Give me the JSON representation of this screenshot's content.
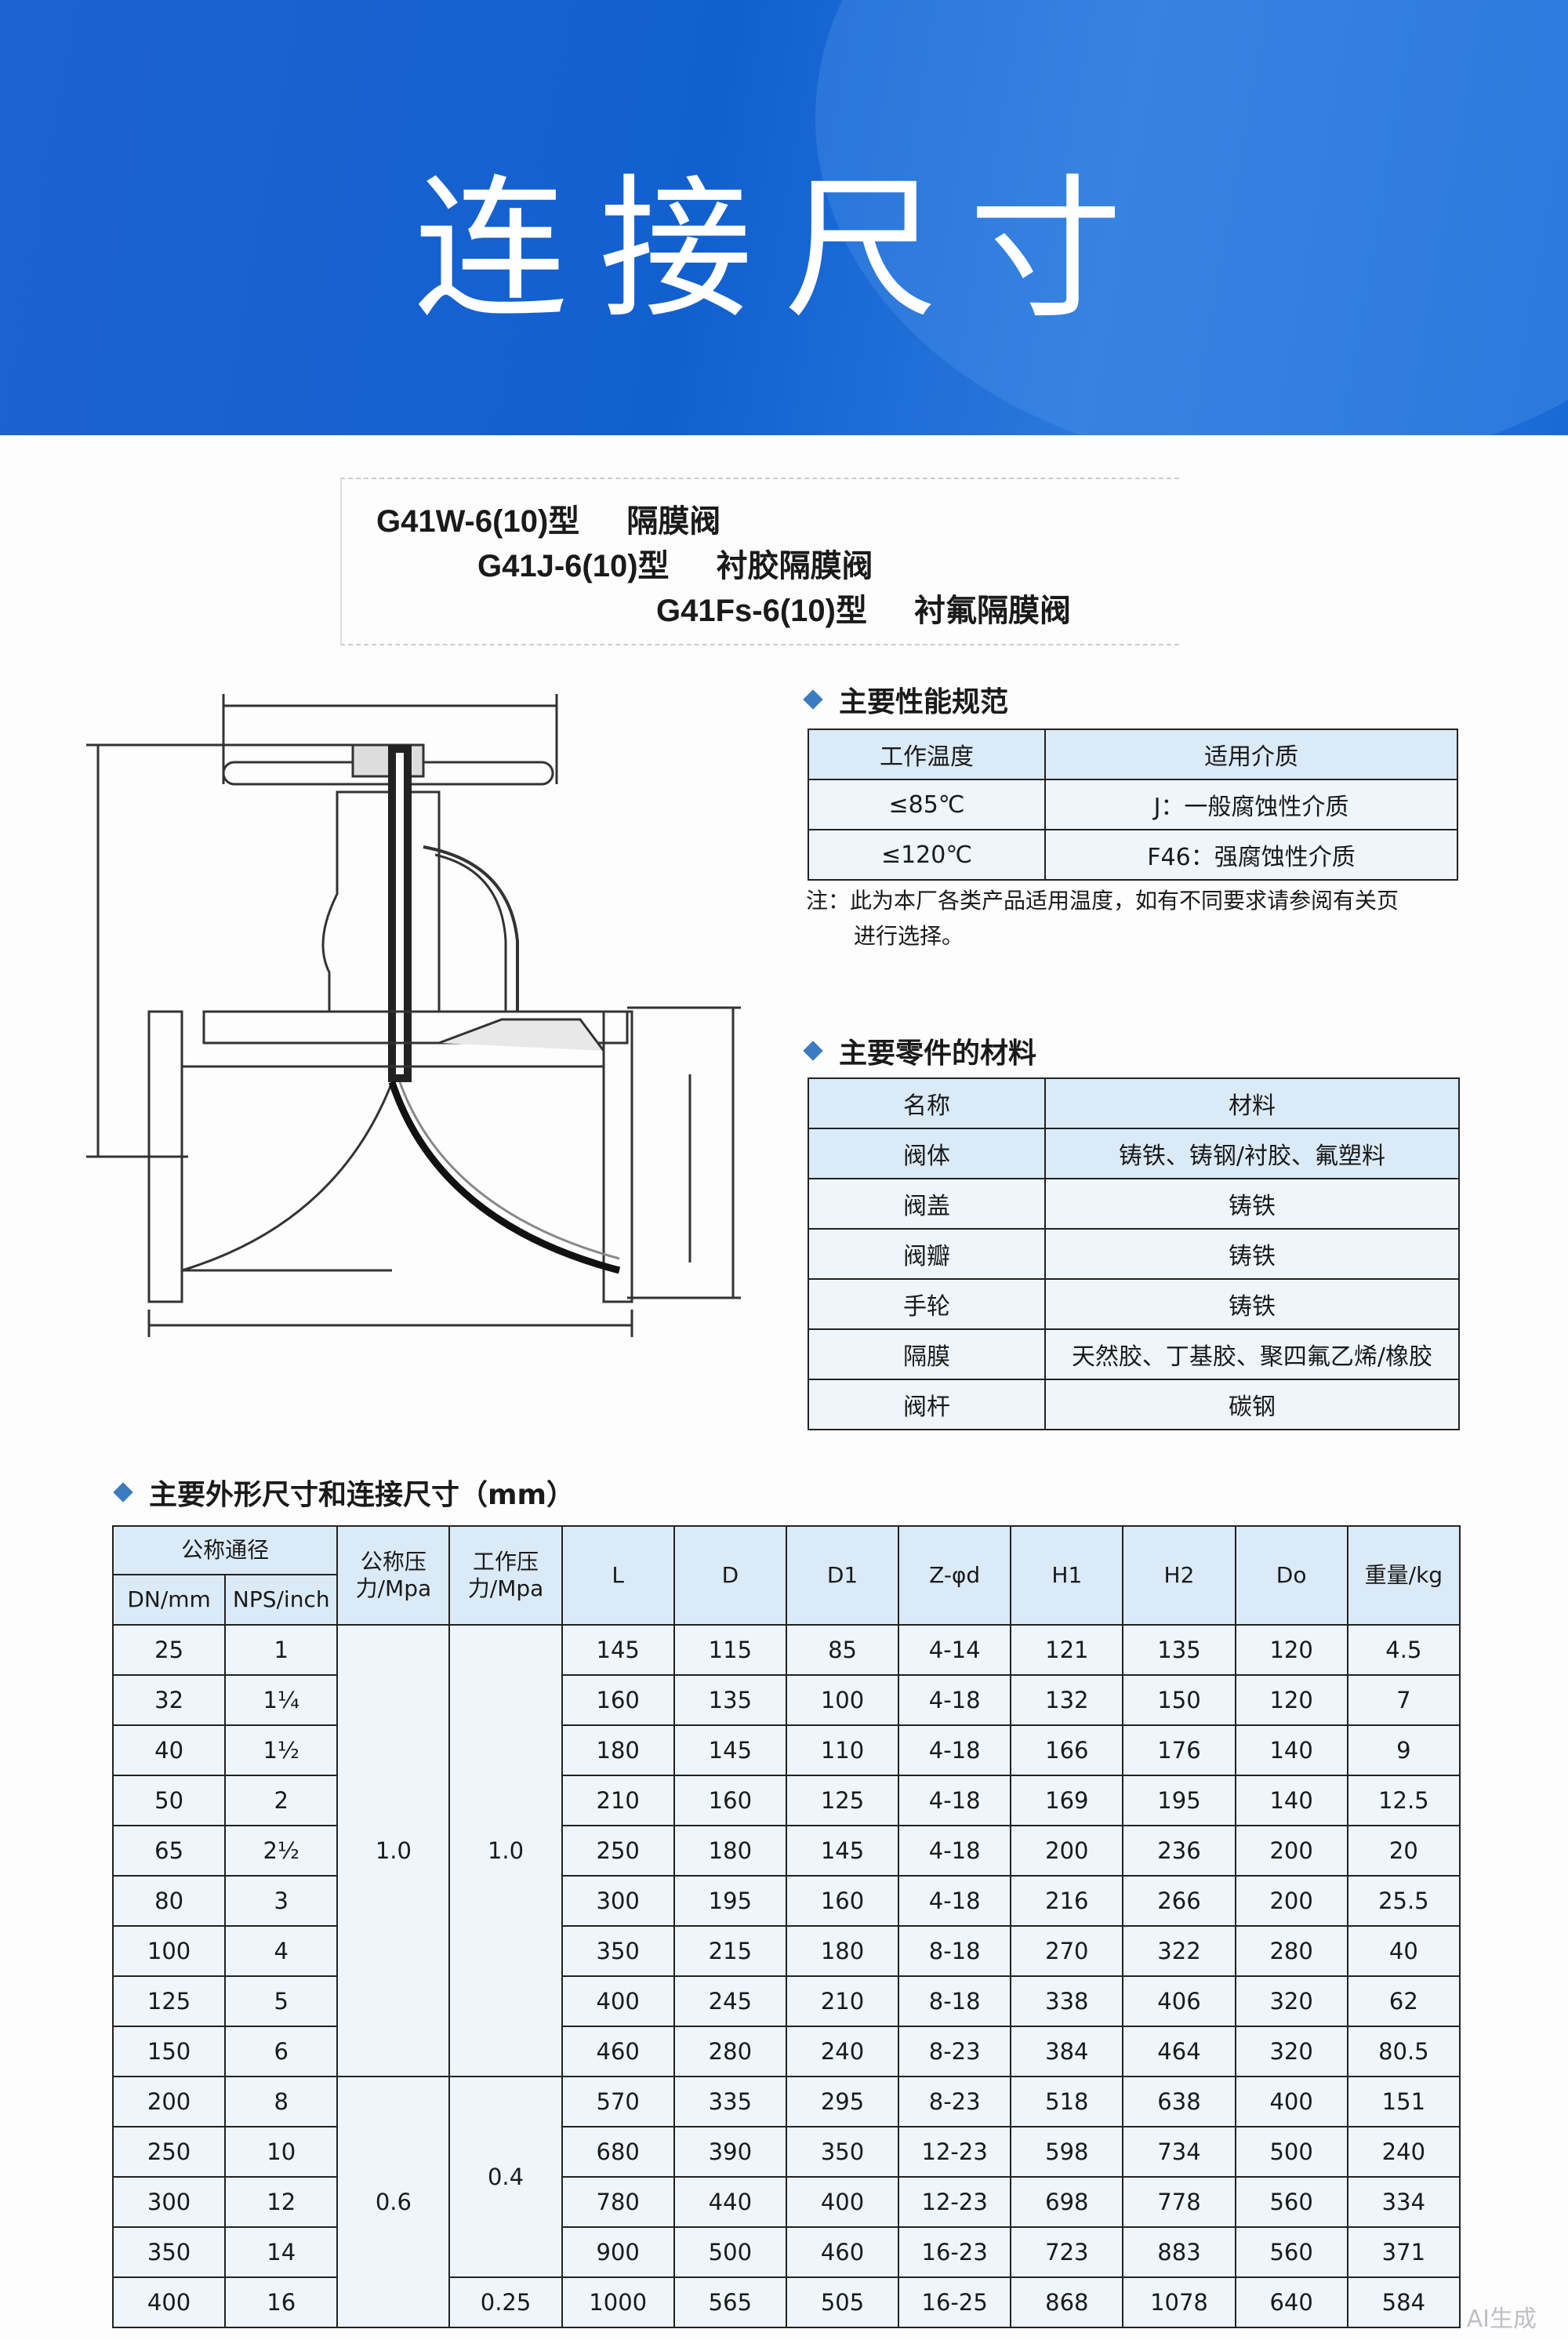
{
  "header": {
    "title": "连接尺寸",
    "background_color": "#1560d0"
  },
  "models": [
    {
      "code": "G41W-6(10)型",
      "name": "隔膜阀"
    },
    {
      "code": "G41J-6(10)型",
      "name": "衬胶隔膜阀"
    },
    {
      "code": "G41Fs-6(10)型",
      "name": "衬氟隔膜阀"
    }
  ],
  "performance": {
    "heading": "主要性能规范",
    "columns": [
      "工作温度",
      "适用介质"
    ],
    "rows": [
      [
        "≤85℃",
        "J：一般腐蚀性介质"
      ],
      [
        "≤120℃",
        "F46：强腐蚀性介质"
      ]
    ],
    "note_line1": "注：此为本厂各类产品适用温度，如有不同要求请参阅有关页",
    "note_line2": "进行选择。"
  },
  "materials": {
    "heading": "主要零件的材料",
    "columns": [
      "名称",
      "材料"
    ],
    "rows": [
      [
        "阀体",
        "铸铁、铸钢/衬胶、氟塑料"
      ],
      [
        "阀盖",
        "铸铁"
      ],
      [
        "阀瓣",
        "铸铁"
      ],
      [
        "手轮",
        "铸铁"
      ],
      [
        "隔膜",
        "天然胶、丁基胶、聚四氟乙烯/橡胶"
      ],
      [
        "阀杆",
        "碳钢"
      ]
    ]
  },
  "dimensions": {
    "heading": "主要外形尺寸和连接尺寸（mm）",
    "header": {
      "nominal_diameter": "公称通径",
      "dn": "DN/mm",
      "nps": "NPS/inch",
      "nominal_pressure": "公称压力/Mpa",
      "working_pressure": "工作压力/Mpa",
      "cols": [
        "L",
        "D",
        "D1",
        "Z-φd",
        "H1",
        "H2",
        "Do",
        "重量/kg"
      ]
    },
    "nominal_pressure_groups": [
      {
        "value": "1.0",
        "rows": 9
      },
      {
        "value": "0.6",
        "rows": 5
      }
    ],
    "working_pressure_groups": [
      {
        "value": "1.0",
        "rows": 9
      },
      {
        "value": "0.4",
        "rows": 4
      },
      {
        "value": "0.25",
        "rows": 1
      }
    ],
    "rows": [
      [
        "25",
        "1",
        "145",
        "115",
        "85",
        "4-14",
        "121",
        "135",
        "120",
        "4.5"
      ],
      [
        "32",
        "1¼",
        "160",
        "135",
        "100",
        "4-18",
        "132",
        "150",
        "120",
        "7"
      ],
      [
        "40",
        "1½",
        "180",
        "145",
        "110",
        "4-18",
        "166",
        "176",
        "140",
        "9"
      ],
      [
        "50",
        "2",
        "210",
        "160",
        "125",
        "4-18",
        "169",
        "195",
        "140",
        "12.5"
      ],
      [
        "65",
        "2½",
        "250",
        "180",
        "145",
        "4-18",
        "200",
        "236",
        "200",
        "20"
      ],
      [
        "80",
        "3",
        "300",
        "195",
        "160",
        "4-18",
        "216",
        "266",
        "200",
        "25.5"
      ],
      [
        "100",
        "4",
        "350",
        "215",
        "180",
        "8-18",
        "270",
        "322",
        "280",
        "40"
      ],
      [
        "125",
        "5",
        "400",
        "245",
        "210",
        "8-18",
        "338",
        "406",
        "320",
        "62"
      ],
      [
        "150",
        "6",
        "460",
        "280",
        "240",
        "8-23",
        "384",
        "464",
        "320",
        "80.5"
      ],
      [
        "200",
        "8",
        "570",
        "335",
        "295",
        "8-23",
        "518",
        "638",
        "400",
        "151"
      ],
      [
        "250",
        "10",
        "680",
        "390",
        "350",
        "12-23",
        "598",
        "734",
        "500",
        "240"
      ],
      [
        "300",
        "12",
        "780",
        "440",
        "400",
        "12-23",
        "698",
        "778",
        "560",
        "334"
      ],
      [
        "350",
        "14",
        "900",
        "500",
        "460",
        "16-23",
        "723",
        "883",
        "560",
        "371"
      ],
      [
        "400",
        "16",
        "1000",
        "565",
        "505",
        "16-25",
        "868",
        "1078",
        "640",
        "584"
      ]
    ]
  },
  "watermark": "AI生成"
}
